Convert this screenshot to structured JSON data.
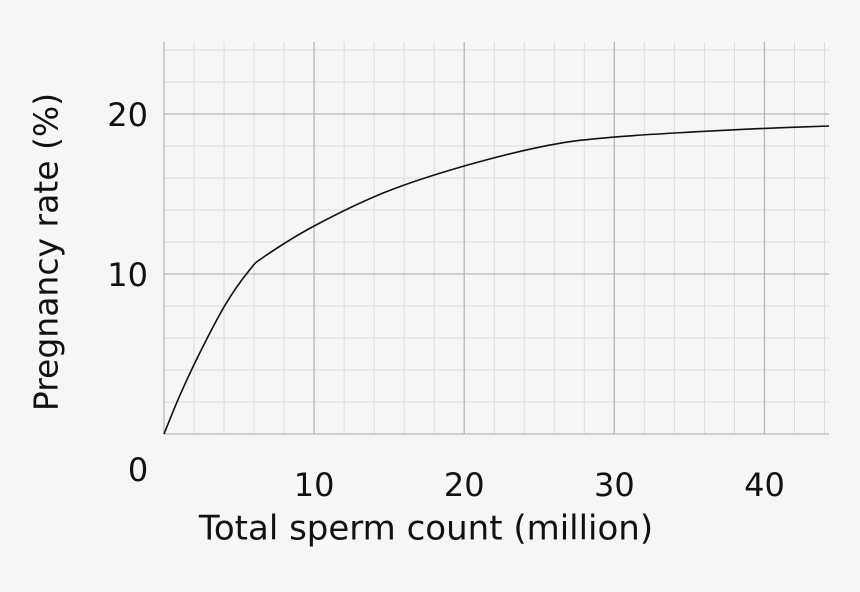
{
  "chart_data": {
    "type": "line",
    "x_label": "Total sperm count (million)",
    "y_label": "Pregnancy rate (%)",
    "origin_label": "0",
    "xlim": [
      0,
      44.3
    ],
    "ylim": [
      0,
      24.5
    ],
    "xticks": [
      10,
      20,
      30,
      40
    ],
    "yticks": [
      10,
      20
    ],
    "minor_grid_step": 2,
    "grid": true,
    "series": [
      {
        "color": "#111111",
        "x": [
          0,
          1.07,
          2.4,
          4.07,
          5.7,
          6.7,
          10,
          14.7,
          20,
          25.7,
          30,
          35.7,
          40,
          44.3
        ],
        "values": [
          0,
          2.44,
          5.1,
          8.06,
          10.25,
          11.1,
          13,
          15.1,
          16.75,
          18.06,
          18.56,
          18.9,
          19.1,
          19.25
        ]
      }
    ]
  }
}
